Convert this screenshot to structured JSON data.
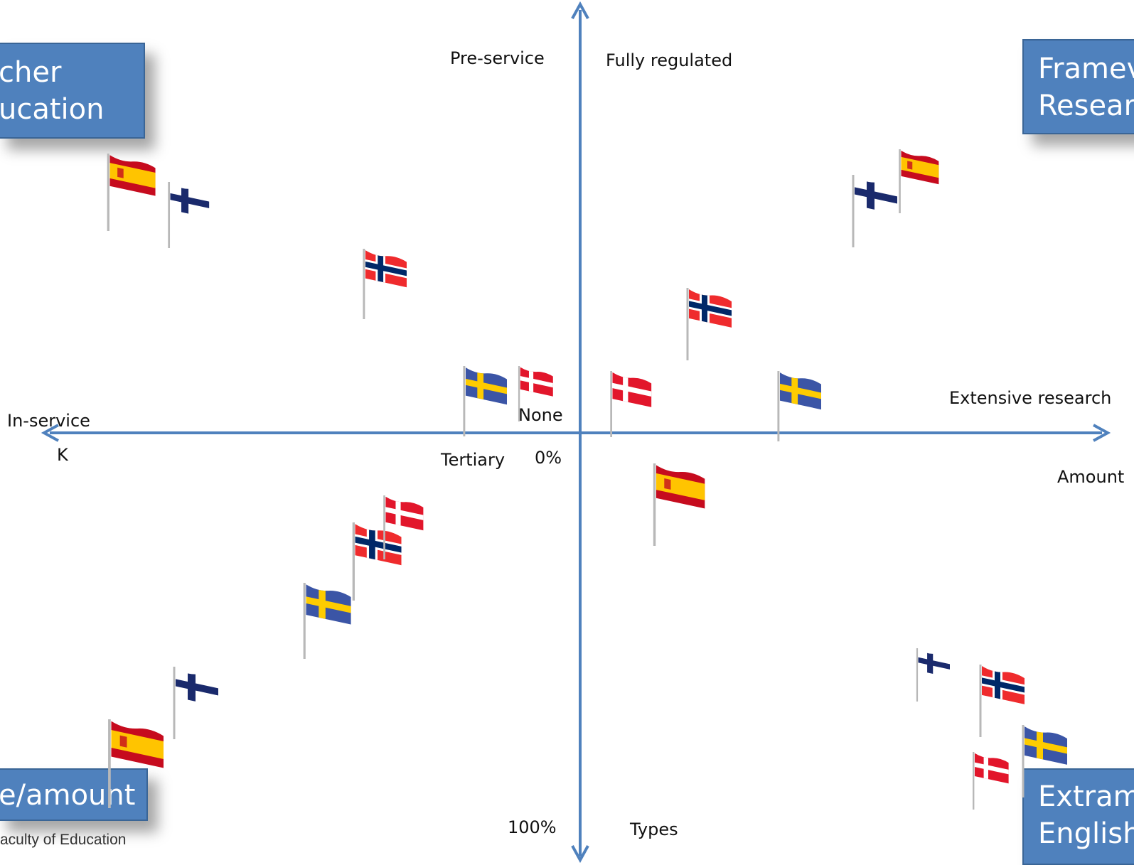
{
  "axes": {
    "top_left_label": "Pre-service",
    "top_right_label": "Fully regulated",
    "left_label": "In-service",
    "left_sub_label": "K",
    "right_label": "Extensive research",
    "right_sub_label": "Amount",
    "center_none": "None",
    "center_tertiary": "Tertiary",
    "center_zero": "0%",
    "bottom_percent": "100%",
    "bottom_types": "Types"
  },
  "boxes": {
    "teacher_education": [
      "cher",
      "ucation"
    ],
    "framework_research": [
      "Framev",
      "Researc"
    ],
    "type_amount": [
      "e/amount"
    ],
    "extramural_english": [
      "Extram",
      "English"
    ]
  },
  "footer": "aculty of Education",
  "flag_colors": {
    "spain": [
      "#c60b1e",
      "#ffc400"
    ],
    "finland": [
      "#ffffff",
      "#1a2a6c"
    ],
    "norway": [
      "#ef2b2d",
      "#ffffff",
      "#002868"
    ],
    "sweden": [
      "#3b55a6",
      "#fecc00"
    ],
    "denmark": [
      "#e2162b",
      "#ffffff"
    ]
  },
  "flags": [
    {
      "country": "spain"
    },
    {
      "country": "finland"
    },
    {
      "country": "norway"
    },
    {
      "country": "sweden"
    },
    {
      "country": "denmark"
    },
    {
      "country": "spain"
    },
    {
      "country": "finland"
    },
    {
      "country": "norway"
    },
    {
      "country": "denmark"
    },
    {
      "country": "sweden"
    },
    {
      "country": "spain"
    },
    {
      "country": "finland"
    },
    {
      "country": "sweden"
    },
    {
      "country": "norway"
    },
    {
      "country": "denmark"
    },
    {
      "country": "spain"
    },
    {
      "country": "finland"
    },
    {
      "country": "norway"
    },
    {
      "country": "denmark"
    },
    {
      "country": "sweden"
    }
  ]
}
